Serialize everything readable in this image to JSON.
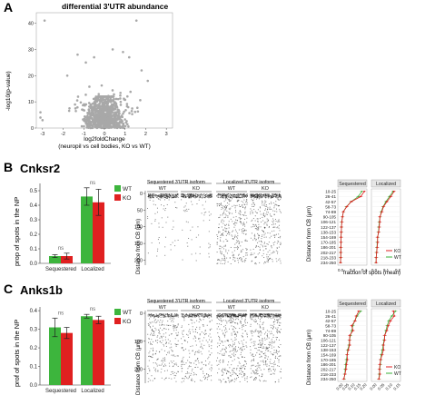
{
  "panelA": {
    "letter": "A",
    "title": "differential 3'UTR abundance",
    "ylabel": "-log10(p-value)",
    "xlabel_line1": "log2foldChange",
    "xlabel_line2": "(neuropil vs cell bodies, KO vs WT)",
    "xticks": [
      "-3",
      "-2",
      "-1",
      "0",
      "1",
      "2",
      "3"
    ],
    "yticks": [
      "0",
      "10",
      "20",
      "30",
      "40"
    ]
  },
  "panelB": {
    "letter": "B",
    "gene": "Cnksr2",
    "ylabel": "prop of spots in the NP",
    "yticks": [
      "0.0",
      "0.1",
      "0.2",
      "0.3",
      "0.4",
      "0.5"
    ],
    "categories": [
      "Sequestered",
      "Localized"
    ],
    "sig": [
      "ns",
      "ns"
    ],
    "legend": [
      "WT",
      "KO"
    ],
    "strip_headers": [
      "Sequestered 3'UTR isoform",
      "Localized 3'UTR isoform"
    ],
    "strip_sub": [
      "WT",
      "KO",
      "WT",
      "KO"
    ],
    "strip_ylabel": "Distance from CB (µm)",
    "strip_yticks": [
      "0",
      "50",
      "100",
      "150",
      "200"
    ],
    "profile_headers": [
      "Sequestered",
      "Localized"
    ],
    "profile_ylabel": "Distance from CB (µm)",
    "profile_xlabel": "fraction of spots (mean)",
    "profile_bins": [
      "10-25",
      "26-41",
      "42-57",
      "58-73",
      "74-89",
      "90-105",
      "106-121",
      "122-137",
      "138-153",
      "154-169",
      "170-185",
      "186-201",
      "202-217",
      "218-233",
      "234-250"
    ],
    "profile_xticks_left": [
      "0.0",
      "0.2",
      "0.4"
    ],
    "profile_xticks_right": [
      "0.0",
      "0.1",
      "0.2"
    ],
    "profile_legend": [
      "KO",
      "WT"
    ]
  },
  "panelC": {
    "letter": "C",
    "gene": "Anks1b",
    "ylabel": "prof of spots in the NP",
    "yticks": [
      "0.0",
      "0.1",
      "0.2",
      "0.3",
      "0.4"
    ],
    "categories": [
      "Sequestered",
      "Localized"
    ],
    "sig": [
      "ns",
      "ns"
    ],
    "legend": [
      "WT",
      "KO"
    ],
    "strip_headers": [
      "Sequestered 3'UTR isoform",
      "Localized 3'UTR isoform"
    ],
    "strip_sub": [
      "WT",
      "KO",
      "WT",
      "KO"
    ],
    "strip_ylabel": "Distance from CB (µm)",
    "strip_yticks": [
      "0",
      "100",
      "200"
    ],
    "profile_headers": [
      "Sequestered",
      "Localized"
    ],
    "profile_ylabel": "Distance from CB (µm)",
    "profile_bins": [
      "10-25",
      "26-41",
      "42-57",
      "58-73",
      "74-89",
      "90-105",
      "106-121",
      "122-137",
      "138-153",
      "154-169",
      "170-185",
      "186-201",
      "202-217",
      "218-233",
      "234-250"
    ],
    "profile_xticks_left": [
      "0.00",
      "0.05",
      "0.10",
      "0.15",
      "0.20"
    ],
    "profile_xticks_right": [
      "0.00",
      "0.05",
      "0.10",
      "0.15"
    ],
    "profile_legend": [
      "KO",
      "WT"
    ]
  },
  "colors": {
    "wt": "#3db53d",
    "ko": "#e02020",
    "points": "#a8a8a8"
  },
  "chart_data": [
    {
      "type": "bar",
      "categories": [
        "Sequestered",
        "Localized"
      ],
      "ylim": [
        0,
        0.55
      ],
      "series": [
        {
          "name": "WT",
          "values": [
            0.05,
            0.46
          ],
          "err": [
            0.01,
            0.06
          ]
        },
        {
          "name": "KO",
          "values": [
            0.05,
            0.42
          ],
          "err": [
            0.02,
            0.09
          ]
        }
      ],
      "ylabel": "prop of spots in the NP"
    },
    {
      "type": "bar",
      "categories": [
        "Sequestered",
        "Localized"
      ],
      "ylim": [
        0,
        0.42
      ],
      "series": [
        {
          "name": "WT",
          "values": [
            0.31,
            0.37
          ],
          "err": [
            0.05,
            0.01
          ]
        },
        {
          "name": "KO",
          "values": [
            0.28,
            0.35
          ],
          "err": [
            0.03,
            0.02
          ]
        }
      ],
      "ylabel": "prof of spots in the NP"
    }
  ]
}
